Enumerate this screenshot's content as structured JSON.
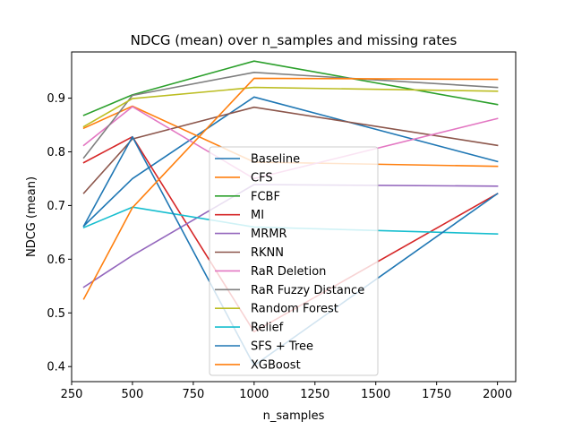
{
  "chart_data": {
    "type": "line",
    "title": "NDCG (mean) over n_samples and missing rates",
    "xlabel": "n_samples",
    "ylabel": "NDCG (mean)",
    "xlim": [
      250,
      2075
    ],
    "ylim": [
      0.372,
      0.986
    ],
    "xticks": [
      250,
      500,
      750,
      1000,
      1250,
      1500,
      1750,
      2000
    ],
    "yticks": [
      0.4,
      0.5,
      0.6,
      0.7,
      0.8,
      0.9
    ],
    "x": [
      300,
      500,
      1000,
      2000
    ],
    "legend_position": "center",
    "grid": false,
    "series": [
      {
        "name": "Baseline",
        "color": "#1f77b4",
        "values": [
          0.662,
          0.75,
          0.902,
          0.782
        ]
      },
      {
        "name": "CFS",
        "color": "#ff7f0e",
        "values": [
          0.844,
          0.885,
          0.781,
          0.773
        ]
      },
      {
        "name": "FCBF",
        "color": "#2ca02c",
        "values": [
          0.868,
          0.906,
          0.969,
          0.888
        ]
      },
      {
        "name": "MI",
        "color": "#d62728",
        "values": [
          0.78,
          0.828,
          0.465,
          0.722
        ]
      },
      {
        "name": "MRMR",
        "color": "#9467bd",
        "values": [
          0.548,
          0.607,
          0.739,
          0.736
        ]
      },
      {
        "name": "RKNN",
        "color": "#8c564b",
        "values": [
          0.723,
          0.824,
          0.883,
          0.812
        ]
      },
      {
        "name": "RaR Deletion",
        "color": "#e377c2",
        "values": [
          0.812,
          0.884,
          0.75,
          0.862
        ]
      },
      {
        "name": "RaR Fuzzy Distance",
        "color": "#7f7f7f",
        "values": [
          0.789,
          0.905,
          0.948,
          0.92
        ]
      },
      {
        "name": "Random Forest",
        "color": "#bcbd22",
        "values": [
          0.847,
          0.899,
          0.92,
          0.913
        ]
      },
      {
        "name": "Relief",
        "color": "#17becf",
        "values": [
          0.659,
          0.697,
          0.66,
          0.647
        ]
      },
      {
        "name": "SFS + Tree",
        "color": "#1f77b4",
        "values": [
          0.662,
          0.828,
          0.402,
          0.722
        ]
      },
      {
        "name": "XGBoost",
        "color": "#ff7f0e",
        "values": [
          0.526,
          0.696,
          0.937,
          0.935
        ]
      }
    ]
  }
}
